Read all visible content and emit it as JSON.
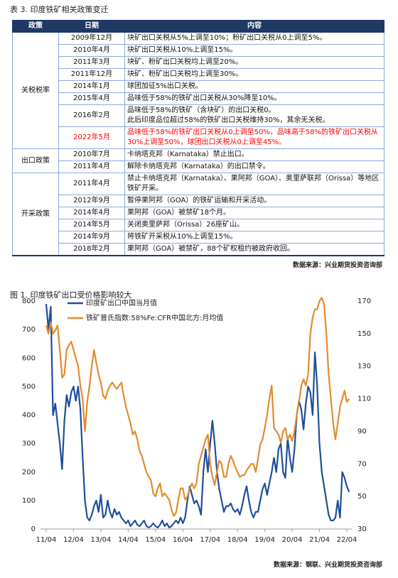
{
  "table": {
    "title": "表 3. 印度铁矿相关政策变迁",
    "header": [
      "政策",
      "日期",
      "内容"
    ],
    "groups": [
      {
        "policy": "关税税率",
        "rows": [
          {
            "date": "2009年12月",
            "content": [
              "块矿出口关税从5%上调至10%；粉矿出口关税从0上调至5%。"
            ]
          },
          {
            "date": "2010年4月",
            "content": [
              "块矿出口关税从10%上调至15%。"
            ]
          },
          {
            "date": "2011年3月",
            "content": [
              "块矿、粉矿出口关税均上调至20%。"
            ]
          },
          {
            "date": "2011年12月",
            "content": [
              "块矿、粉矿出口关税均上调至30%。"
            ]
          },
          {
            "date": "2014年1月",
            "content": [
              "球团加征5%出口关税。"
            ]
          },
          {
            "date": "2015年4月",
            "content": [
              "品味低于58%的铁矿出口关税从30%降至10%。"
            ]
          },
          {
            "date": "2016年2月",
            "content": [
              "品味低于58%的铁矿（含块矿）的出口关税0。",
              "此后印度品位超过58%的铁矿出口关税维持30%，其余无关税。"
            ]
          },
          {
            "date": "2022年5月",
            "color": "#ff0000",
            "content": [
              "品味低于58%的铁矿出口关税从0上调至50%，品味高于58%的铁矿出口关税从30%上调至50%，球团出口关税从0上调至45%。"
            ]
          }
        ]
      },
      {
        "policy": "出口政策",
        "rows": [
          {
            "date": "2010年7月",
            "content": [
              "卡纳塔克邦（Karnataka）禁止出口。"
            ]
          },
          {
            "date": "2011年4月",
            "content": [
              "解除卡纳塔克邦（Karnataka）的出口禁令。"
            ]
          }
        ]
      },
      {
        "policy": "开采政策",
        "rows": [
          {
            "date": "2011年4月",
            "content": [
              "禁止卡纳塔克邦（Karnataka）、果阿邦（GOA）、奥里萨联邦（Orissa）等地区铁矿开采。"
            ]
          },
          {
            "date": "2012年9月",
            "content": [
              "暂停果阿邦（GOA）的铁矿运输和开采活动。"
            ]
          },
          {
            "date": "2014年4月",
            "content": [
              "果阿邦（GOA）被禁矿18个月。"
            ]
          },
          {
            "date": "2014年5月",
            "content": [
              "关闭奥里萨邦（Orissa）26座矿山。"
            ]
          },
          {
            "date": "2014年9月",
            "content": [
              "将铁矿开采税从10%上调至15%。"
            ]
          },
          {
            "date": "2018年2月",
            "content": [
              "果阿邦（GOA）被禁矿，88个矿权租约被政府收回。"
            ]
          }
        ]
      }
    ],
    "source": "数据来源：兴业期货投资咨询部"
  },
  "chart_data": {
    "type": "line",
    "title": "图 1. 印度铁矿出口受价格影响较大",
    "categories": [
      "11/04",
      null,
      null,
      null,
      null,
      null,
      null,
      null,
      null,
      null,
      null,
      null,
      "12/04",
      null,
      null,
      null,
      null,
      null,
      null,
      null,
      null,
      null,
      null,
      null,
      "13/04",
      null,
      null,
      null,
      null,
      null,
      null,
      null,
      null,
      null,
      null,
      null,
      "14/04",
      null,
      null,
      null,
      null,
      null,
      null,
      null,
      null,
      null,
      null,
      null,
      "15/04",
      null,
      null,
      null,
      null,
      null,
      null,
      null,
      null,
      null,
      null,
      null,
      "16/04",
      null,
      null,
      null,
      null,
      null,
      null,
      null,
      null,
      null,
      null,
      null,
      "17/04",
      null,
      null,
      null,
      null,
      null,
      null,
      null,
      null,
      null,
      null,
      null,
      "18/04",
      null,
      null,
      null,
      null,
      null,
      null,
      null,
      null,
      null,
      null,
      null,
      "19/04",
      null,
      null,
      null,
      null,
      null,
      null,
      null,
      null,
      null,
      null,
      null,
      "20/04",
      null,
      null,
      null,
      null,
      null,
      null,
      null,
      null,
      null,
      null,
      null,
      "21/04",
      null,
      null,
      null,
      null,
      null,
      null,
      null,
      null,
      null,
      null,
      null,
      "22/04",
      null
    ],
    "series": [
      {
        "name": "印度矿出口中国当月值",
        "color": "#1f4e9c",
        "axis": "y",
        "values": [
          790,
          700,
          780,
          400,
          440,
          370,
          300,
          210,
          380,
          470,
          430,
          480,
          500,
          450,
          500,
          420,
          250,
          100,
          40,
          30,
          50,
          80,
          100,
          60,
          120,
          40,
          50,
          100,
          60,
          40,
          70,
          50,
          60,
          40,
          30,
          20,
          30,
          10,
          20,
          30,
          15,
          10,
          20,
          30,
          10,
          5,
          10,
          20,
          10,
          5,
          15,
          30,
          10,
          20,
          5,
          10,
          20,
          30,
          20,
          40,
          20,
          40,
          100,
          150,
          120,
          90,
          100,
          80,
          50,
          200,
          280,
          200,
          300,
          380,
          300,
          200,
          140,
          100,
          60,
          80,
          80,
          90,
          70,
          60,
          70,
          50,
          80,
          120,
          150,
          100,
          60,
          40,
          60,
          60,
          100,
          140,
          160,
          120,
          160,
          200,
          250,
          200,
          280,
          300,
          200,
          180,
          320,
          250,
          200,
          280,
          400,
          450,
          420,
          350,
          440,
          500,
          480,
          400,
          620,
          500,
          300,
          200,
          150,
          100,
          50,
          30,
          30,
          40,
          100,
          40,
          200,
          180,
          150,
          130
        ]
      },
      {
        "name": "铁矿普氏指数:58%Fe:CFR中国北方:月均值",
        "color": "#e58a2e",
        "axis": "y2",
        "values": [
          155,
          150,
          157,
          150,
          152,
          155,
          140,
          123,
          125,
          140,
          143,
          145,
          140,
          135,
          130,
          118,
          110,
          90,
          108,
          118,
          130,
          140,
          132,
          125,
          120,
          112,
          110,
          115,
          118,
          120,
          118,
          116,
          118,
          120,
          112,
          105,
          100,
          95,
          88,
          90,
          85,
          78,
          75,
          70,
          65,
          62,
          60,
          52,
          50,
          55,
          58,
          50,
          52,
          50,
          48,
          42,
          38,
          40,
          48,
          55,
          55,
          48,
          50,
          55,
          58,
          55,
          58,
          70,
          75,
          80,
          85,
          88,
          70,
          62,
          57,
          65,
          72,
          70,
          62,
          62,
          70,
          75,
          72,
          68,
          65,
          62,
          63,
          63,
          66,
          68,
          70,
          70,
          65,
          73,
          82,
          85,
          92,
          100,
          110,
          118,
          92,
          90,
          88,
          83,
          90,
          92,
          85,
          88,
          84,
          90,
          100,
          108,
          118,
          122,
          118,
          125,
          150,
          160,
          165,
          165,
          170,
          172,
          168,
          150,
          125,
          110,
          95,
          85,
          95,
          105,
          110,
          115,
          108,
          110
        ]
      }
    ],
    "ylim": [
      0,
      800
    ],
    "yticks": [
      0,
      100,
      200,
      300,
      400,
      500,
      600,
      700,
      800
    ],
    "y2lim": [
      30,
      170
    ],
    "y2ticks": [
      30,
      50,
      70,
      90,
      110,
      130,
      150,
      170
    ],
    "legend": "top-left",
    "source": "数据来源：钢联、兴业期货投资咨询部"
  }
}
